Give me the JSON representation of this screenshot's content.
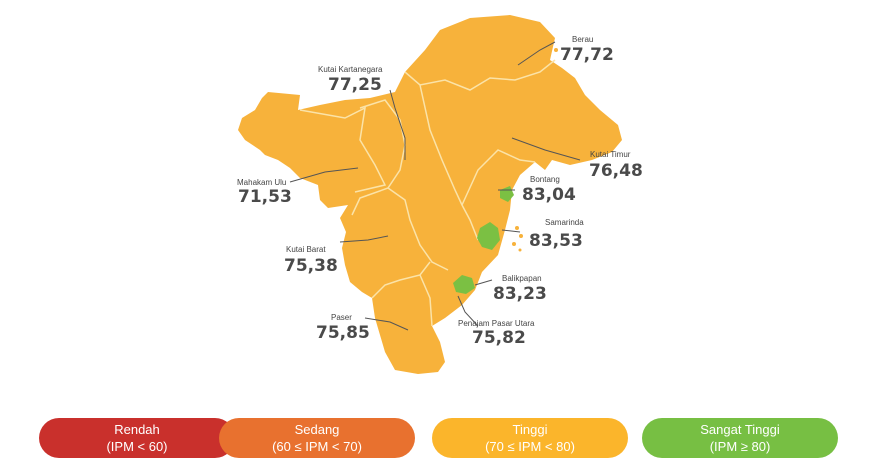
{
  "regions": [
    {
      "name": "Berau",
      "value": "77,72",
      "category": "tinggi"
    },
    {
      "name": "Kutai Kartanegara",
      "value": "77,25",
      "category": "tinggi"
    },
    {
      "name": "Kutai Timur",
      "value": "76,48",
      "category": "tinggi"
    },
    {
      "name": "Mahakam Ulu",
      "value": "71,53",
      "category": "tinggi"
    },
    {
      "name": "Bontang",
      "value": "83,04",
      "category": "sangat_tinggi"
    },
    {
      "name": "Samarinda",
      "value": "83,53",
      "category": "sangat_tinggi"
    },
    {
      "name": "Kutai Barat",
      "value": "75,38",
      "category": "tinggi"
    },
    {
      "name": "Balikpapan",
      "value": "83,23",
      "category": "sangat_tinggi"
    },
    {
      "name": "Paser",
      "value": "75,85",
      "category": "tinggi"
    },
    {
      "name": "Penajam Pasar Utara",
      "value": "75,82",
      "category": "tinggi"
    }
  ],
  "legend": [
    {
      "label": "Rendah",
      "range": "(IPM < 60)",
      "color": "#c9302c"
    },
    {
      "label": "Sedang",
      "range": "(60 ≤ IPM < 70)",
      "color": "#e8712f"
    },
    {
      "label": "Tinggi",
      "range": "(70 ≤ IPM < 80)",
      "color": "#fbb52b"
    },
    {
      "label": "Sangat Tinggi",
      "range": "(IPM ≥ 80)",
      "color": "#77bf43"
    }
  ],
  "colors": {
    "land": "#f7b23b",
    "border": "#fbe3a8",
    "green": "#7bc043",
    "leader": "#555555"
  }
}
